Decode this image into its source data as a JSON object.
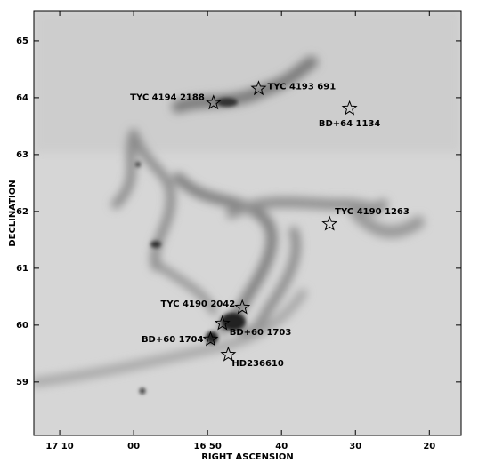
{
  "chart_data": {
    "type": "scatter",
    "x_label": "RIGHT ASCENSION",
    "y_label": "DECLINATION",
    "xlim": [
      1033.5,
      975.7
    ],
    "xticks": [
      {
        "value": 1030,
        "label": "17 10"
      },
      {
        "value": 1020,
        "label": "00"
      },
      {
        "value": 1010,
        "label": "16 50"
      },
      {
        "value": 1000,
        "label": "40"
      },
      {
        "value": 990,
        "label": "30"
      },
      {
        "value": 980,
        "label": "20"
      }
    ],
    "ylim": [
      58.06,
      65.53
    ],
    "yticks": [
      59,
      60,
      61,
      62,
      63,
      64,
      65
    ],
    "marker_color": "#000000",
    "points": [
      {
        "label": "TYC 4194 2188",
        "x": 1009.2,
        "y": 63.91
      },
      {
        "label": "TYC 4193 691",
        "x": 1003.1,
        "y": 64.16
      },
      {
        "label": "BD+64 1134",
        "x": 990.8,
        "y": 63.81
      },
      {
        "label": "TYC 4190 1263",
        "x": 993.5,
        "y": 61.78
      },
      {
        "label": "TYC 4190 2042",
        "x": 1005.3,
        "y": 60.31
      },
      {
        "label": "BD+60 1703",
        "x": 1008.0,
        "y": 60.03
      },
      {
        "label": "BD+60 1704",
        "x": 1009.6,
        "y": 59.75
      },
      {
        "label": "HD236610",
        "x": 1007.2,
        "y": 59.48
      }
    ]
  }
}
